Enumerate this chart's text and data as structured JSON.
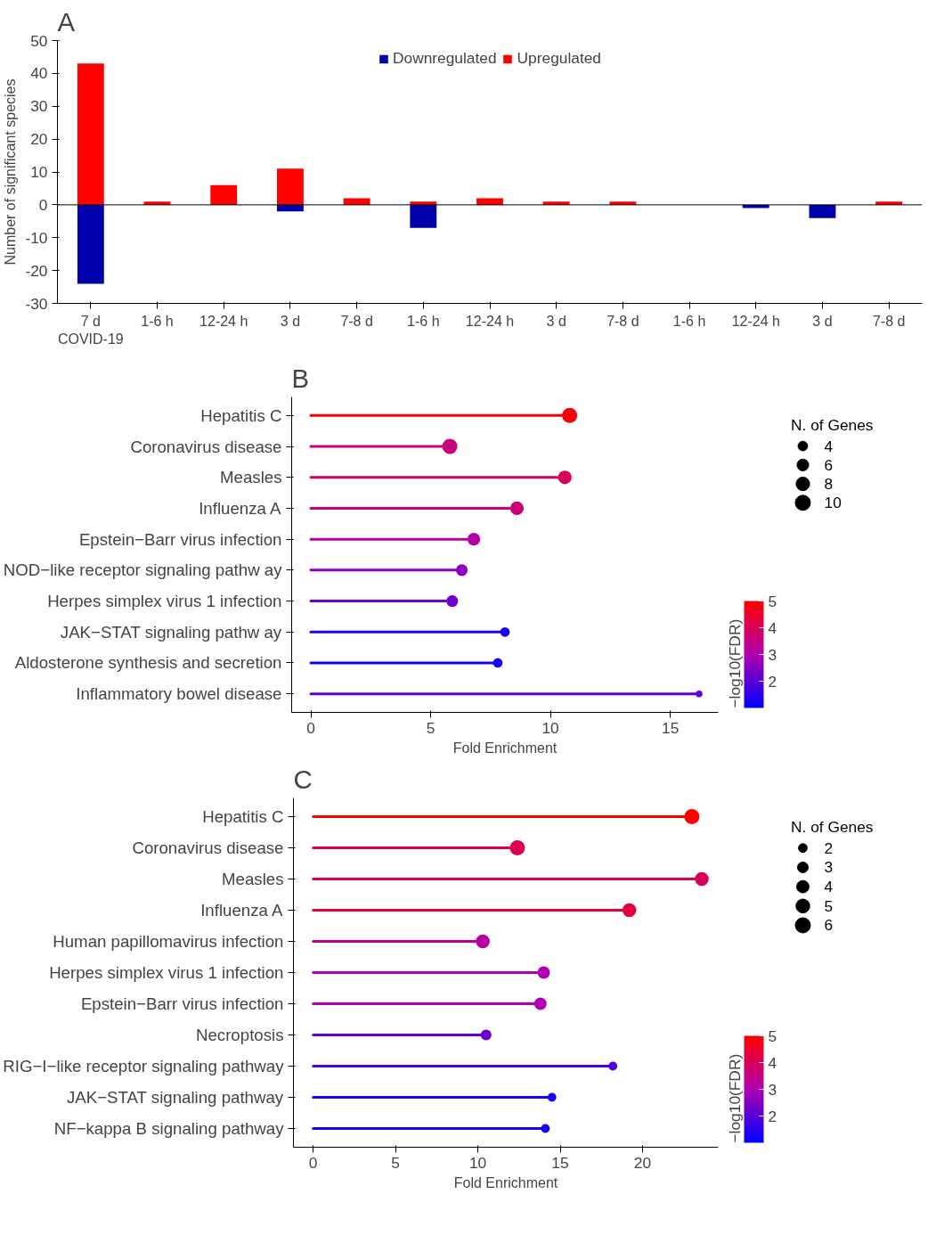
{
  "chart_data": [
    {
      "type": "bar",
      "title": "A",
      "ylabel": "Number of significant species",
      "stacked": true,
      "legend": "top",
      "grid": false,
      "categories": [
        "7 d",
        "1-6 h",
        "12-24 h",
        "3 d",
        "7-8 d",
        "1-6 h",
        "12-24 h",
        "3 d",
        "7-8 d",
        "1-6 h",
        "12-24 h",
        "3 d",
        "7-8 d"
      ],
      "series": [
        {
          "name": "Downregulated",
          "color": "#0000aa",
          "values": [
            -24,
            null,
            null,
            -2,
            null,
            -7,
            null,
            null,
            null,
            null,
            -1,
            -4,
            null
          ]
        },
        {
          "name": "Upregulated",
          "color": "#ff0000",
          "values": [
            43,
            1,
            6,
            11,
            2,
            1,
            2,
            1,
            1,
            null,
            null,
            null,
            1
          ]
        }
      ],
      "ylim": [
        -30,
        50
      ],
      "yticks": [
        -30,
        -20,
        -10,
        0,
        10,
        20,
        30,
        40,
        50
      ],
      "ref_lines": [
        {
          "axis": "y",
          "value": 0,
          "color": "#000000"
        }
      ],
      "annotations": [
        "COVID-19"
      ]
    },
    {
      "type": "lollipop",
      "title": "B",
      "orientation": "horizontal",
      "xlabel": "Fold Enrichment",
      "grid": false,
      "categories": [
        "Hepatitis C",
        "Coronavirus disease",
        "Measles",
        "Influenza A",
        "Epstein−Barr virus infection",
        "NOD−like receptor signaling pathw ay",
        "Herpes simplex virus 1 infection",
        "JAK−STAT signaling pathw ay",
        "Aldosterone synthesis and secretion",
        "Inflammatory bowel disease"
      ],
      "values": [
        10.8,
        5.8,
        10.6,
        8.6,
        6.8,
        6.3,
        5.9,
        8.1,
        7.8,
        16.2
      ],
      "sizes": [
        10,
        10,
        8,
        8,
        7,
        6,
        6,
        4,
        4,
        2
      ],
      "size_legend": [
        4,
        6,
        8,
        10
      ],
      "legend_title": "N. of Genes",
      "cvalues": [
        4.9,
        3.6,
        4.0,
        3.7,
        3.1,
        2.6,
        2.3,
        1.3,
        1.3,
        2.1
      ],
      "clim": [
        1,
        5
      ],
      "cticks": [
        2,
        3,
        4,
        5
      ],
      "clabel": "−log10(FDR)",
      "xlim": [
        -0.8,
        17
      ],
      "xticks": [
        0,
        5,
        10,
        15
      ]
    },
    {
      "type": "lollipop",
      "title": "C",
      "orientation": "horizontal",
      "xlabel": "Fold Enrichment",
      "grid": false,
      "categories": [
        "Hepatitis C",
        "Coronavirus disease",
        "Measles",
        "Influenza A",
        "Human papillomavirus infection",
        "Herpes simplex virus 1 infection",
        "Epstein−Barr virus infection",
        "Necroptosis",
        "RIG−I−like receptor signaling pathway",
        "JAK−STAT signaling pathway",
        "NF−kappa B signaling pathway"
      ],
      "values": [
        23.0,
        12.4,
        23.6,
        19.2,
        10.3,
        14.0,
        13.8,
        10.5,
        18.2,
        14.5,
        14.1
      ],
      "sizes": [
        6,
        6,
        5,
        5,
        5,
        4,
        4,
        3,
        2,
        2,
        2
      ],
      "size_legend": [
        2,
        3,
        4,
        5,
        6
      ],
      "legend_title": "N. of Genes",
      "cvalues": [
        5.0,
        4.1,
        4.0,
        4.3,
        3.2,
        3.0,
        3.0,
        2.2,
        1.9,
        1.3,
        1.3
      ],
      "clim": [
        1,
        5
      ],
      "cticks": [
        2,
        3,
        4,
        5
      ],
      "clabel": "−log10(FDR)",
      "xlim": [
        -1.2,
        24.6
      ],
      "xticks": [
        0,
        5,
        10,
        15,
        20
      ]
    }
  ]
}
